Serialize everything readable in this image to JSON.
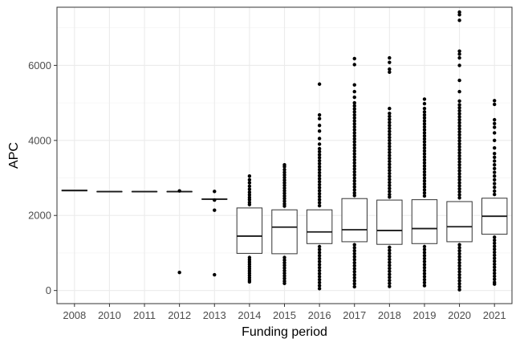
{
  "chart_data": {
    "type": "box",
    "xlabel": "Funding period",
    "ylabel": "APC",
    "categories": [
      "2008",
      "2010",
      "2011",
      "2012",
      "2013",
      "2014",
      "2015",
      "2016",
      "2017",
      "2018",
      "2019",
      "2020",
      "2021"
    ],
    "ylim": [
      -350,
      7550
    ],
    "yticks": [
      0,
      2000,
      4000,
      6000
    ],
    "ytick_labels": [
      "0",
      "2000",
      "4000",
      "6000"
    ],
    "grid": true,
    "boxes": [
      {
        "q1": 2655,
        "median": 2665,
        "q3": 2675,
        "whisker_low": 2655,
        "whisker_high": 2675,
        "outliers": []
      },
      {
        "q1": 2630,
        "median": 2635,
        "q3": 2640,
        "whisker_low": 2630,
        "whisker_high": 2640,
        "outliers": []
      },
      {
        "q1": 2630,
        "median": 2635,
        "q3": 2640,
        "whisker_low": 2630,
        "whisker_high": 2640,
        "outliers": []
      },
      {
        "q1": 2630,
        "median": 2635,
        "q3": 2640,
        "whisker_low": 2630,
        "whisker_high": 2640,
        "outliers": [
          2655,
          480
        ]
      },
      {
        "q1": 2430,
        "median": 2435,
        "q3": 2440,
        "whisker_low": 2430,
        "whisker_high": 2440,
        "outliers": [
          2640,
          2410,
          2140,
          420
        ]
      },
      {
        "q1": 990,
        "median": 1450,
        "q3": 2200,
        "whisker_low": 990,
        "whisker_high": 2200,
        "outliers": [
          3050,
          2950,
          2870,
          2780,
          2700,
          2620,
          2550,
          2480,
          2420,
          2350,
          2290,
          880,
          820,
          760,
          700,
          640,
          580,
          520,
          460,
          400,
          340,
          280,
          230
        ]
      },
      {
        "q1": 980,
        "median": 1690,
        "q3": 2150,
        "whisker_low": 980,
        "whisker_high": 2150,
        "outliers": [
          3350,
          3300,
          3220,
          3150,
          3080,
          3010,
          2940,
          2870,
          2800,
          2730,
          2660,
          2590,
          2520,
          2450,
          2380,
          2310,
          2250,
          880,
          810,
          740,
          670,
          600,
          530,
          460,
          390,
          320,
          250,
          190
        ]
      },
      {
        "q1": 1250,
        "median": 1560,
        "q3": 2150,
        "whisker_low": 1250,
        "whisker_high": 2150,
        "outliers": [
          5500,
          4680,
          4580,
          4400,
          4250,
          4050,
          3900,
          3780,
          3700,
          3620,
          3540,
          3460,
          3380,
          3300,
          3220,
          3140,
          3060,
          2980,
          2900,
          2820,
          2740,
          2660,
          2580,
          2500,
          2420,
          2340,
          2260,
          1170,
          1090,
          1010,
          930,
          850,
          770,
          690,
          610,
          530,
          450,
          370,
          290,
          210,
          130,
          50
        ]
      },
      {
        "q1": 1300,
        "median": 1620,
        "q3": 2450,
        "whisker_low": 1300,
        "whisker_high": 2450,
        "outliers": [
          6180,
          6020,
          5480,
          5300,
          5150,
          5000,
          4920,
          4840,
          4760,
          4680,
          4600,
          4520,
          4440,
          4360,
          4280,
          4200,
          4120,
          4040,
          3960,
          3880,
          3800,
          3720,
          3640,
          3560,
          3480,
          3400,
          3320,
          3240,
          3160,
          3080,
          3000,
          2920,
          2840,
          2760,
          2680,
          2600,
          2530,
          1220,
          1140,
          1060,
          980,
          900,
          820,
          740,
          660,
          580,
          500,
          420,
          340,
          260,
          180,
          100
        ]
      },
      {
        "q1": 1230,
        "median": 1600,
        "q3": 2410,
        "whisker_low": 1230,
        "whisker_high": 2410,
        "outliers": [
          6200,
          6080,
          5900,
          5820,
          4850,
          4720,
          4640,
          4560,
          4480,
          4400,
          4320,
          4240,
          4160,
          4080,
          4000,
          3920,
          3840,
          3760,
          3680,
          3600,
          3520,
          3440,
          3360,
          3280,
          3200,
          3120,
          3040,
          2960,
          2880,
          2800,
          2720,
          2640,
          2560,
          2490,
          1150,
          1070,
          990,
          910,
          830,
          750,
          670,
          590,
          510,
          430,
          350,
          270,
          190,
          110
        ]
      },
      {
        "q1": 1250,
        "median": 1650,
        "q3": 2420,
        "whisker_low": 1250,
        "whisker_high": 2420,
        "outliers": [
          5100,
          4980,
          4850,
          4760,
          4680,
          4600,
          4520,
          4440,
          4360,
          4280,
          4200,
          4120,
          4040,
          3960,
          3880,
          3800,
          3720,
          3640,
          3560,
          3480,
          3400,
          3320,
          3240,
          3160,
          3080,
          3000,
          2920,
          2840,
          2760,
          2680,
          2600,
          2520,
          1170,
          1090,
          1010,
          930,
          850,
          770,
          690,
          610,
          530,
          450,
          370,
          290,
          210,
          130
        ]
      },
      {
        "q1": 1300,
        "median": 1700,
        "q3": 2370,
        "whisker_low": 1300,
        "whisker_high": 2370,
        "outliers": [
          7420,
          7350,
          7200,
          6380,
          6300,
          6200,
          6000,
          5600,
          5300,
          5050,
          4950,
          4870,
          4790,
          4710,
          4630,
          4550,
          4470,
          4390,
          4310,
          4230,
          4150,
          4070,
          3990,
          3910,
          3830,
          3750,
          3670,
          3590,
          3510,
          3430,
          3350,
          3270,
          3190,
          3110,
          3030,
          2950,
          2870,
          2790,
          2710,
          2630,
          2550,
          2470,
          1220,
          1140,
          1060,
          980,
          900,
          820,
          740,
          660,
          580,
          500,
          420,
          340,
          260,
          180,
          100,
          20
        ]
      },
      {
        "q1": 1500,
        "median": 1980,
        "q3": 2460,
        "whisker_low": 1500,
        "whisker_high": 2460,
        "outliers": [
          5060,
          4960,
          4550,
          4450,
          4350,
          4200,
          4000,
          3800,
          3650,
          3550,
          3450,
          3350,
          3250,
          3150,
          3050,
          2950,
          2850,
          2750,
          2650,
          2560,
          1420,
          1340,
          1260,
          1180,
          1100,
          1020,
          940,
          860,
          780,
          700,
          620,
          540,
          460,
          380,
          300,
          220,
          170
        ]
      }
    ]
  }
}
